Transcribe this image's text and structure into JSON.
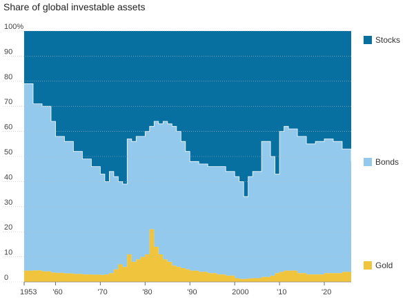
{
  "title": "Share of global investable assets",
  "chart_data": {
    "type": "area",
    "stacked": true,
    "title": "Share of global investable assets",
    "ylim": [
      0,
      100
    ],
    "y_ticks": [
      "100%",
      "90",
      "80",
      "70",
      "60",
      "50",
      "40",
      "30",
      "20",
      "10",
      "0"
    ],
    "x_ticks": [
      {
        "year": 1953,
        "label": "1953"
      },
      {
        "year": 1960,
        "label": "'60"
      },
      {
        "year": 1970,
        "label": "'70"
      },
      {
        "year": 1980,
        "label": "'80"
      },
      {
        "year": 1990,
        "label": "'90"
      },
      {
        "year": 2000,
        "label": "2000"
      },
      {
        "year": 2010,
        "label": "'10"
      },
      {
        "year": 2020,
        "label": "'20"
      }
    ],
    "xlim": [
      1953,
      2026
    ],
    "legend_position": "right",
    "x": [
      1953,
      1955,
      1957,
      1959,
      1960,
      1962,
      1964,
      1966,
      1968,
      1970,
      1971,
      1972,
      1973,
      1974,
      1975,
      1976,
      1977,
      1978,
      1979,
      1980,
      1981,
      1982,
      1983,
      1984,
      1985,
      1986,
      1987,
      1988,
      1989,
      1990,
      1992,
      1994,
      1996,
      1998,
      2000,
      2001,
      2002,
      2003,
      2004,
      2006,
      2008,
      2009,
      2010,
      2011,
      2012,
      2014,
      2016,
      2018,
      2020,
      2022,
      2024,
      2026
    ],
    "series": [
      {
        "name": "Gold",
        "color": "#f0c43c",
        "values": [
          4.5,
          4.6,
          4.2,
          3.8,
          3.6,
          3.4,
          3.2,
          3.0,
          2.9,
          2.8,
          3.0,
          3.5,
          5.0,
          7.0,
          6.0,
          11.0,
          8.0,
          9.0,
          10.0,
          11.0,
          21.0,
          14.0,
          11.0,
          9.0,
          8.0,
          6.5,
          6.0,
          5.5,
          5.0,
          4.5,
          4.0,
          3.5,
          3.0,
          2.5,
          1.5,
          1.2,
          1.2,
          1.4,
          1.5,
          2.0,
          2.5,
          3.5,
          4.0,
          4.5,
          4.5,
          3.5,
          3.0,
          3.0,
          3.5,
          3.5,
          4.0,
          6.0
        ]
      },
      {
        "name": "Bonds",
        "color": "#93c9ec",
        "values_cumulative": [
          79,
          71,
          70,
          64,
          58,
          56,
          52,
          49,
          46,
          43,
          40,
          44,
          42,
          40,
          39,
          57,
          56,
          58,
          58,
          60,
          62,
          64,
          63,
          64,
          63,
          62,
          60,
          56,
          52,
          48,
          47,
          46,
          46,
          44,
          42,
          40,
          34,
          42,
          44,
          56,
          50,
          43,
          60,
          62,
          61,
          58,
          55,
          56,
          57,
          56,
          53,
          48
        ]
      },
      {
        "name": "Stocks",
        "color": "#086fa1",
        "values_cumulative": [
          100,
          100,
          100,
          100,
          100,
          100,
          100,
          100,
          100,
          100,
          100,
          100,
          100,
          100,
          100,
          100,
          100,
          100,
          100,
          100,
          100,
          100,
          100,
          100,
          100,
          100,
          100,
          100,
          100,
          100,
          100,
          100,
          100,
          100,
          100,
          100,
          100,
          100,
          100,
          100,
          100,
          100,
          100,
          100,
          100,
          100,
          100,
          100,
          100,
          100,
          100,
          100
        ]
      }
    ]
  }
}
